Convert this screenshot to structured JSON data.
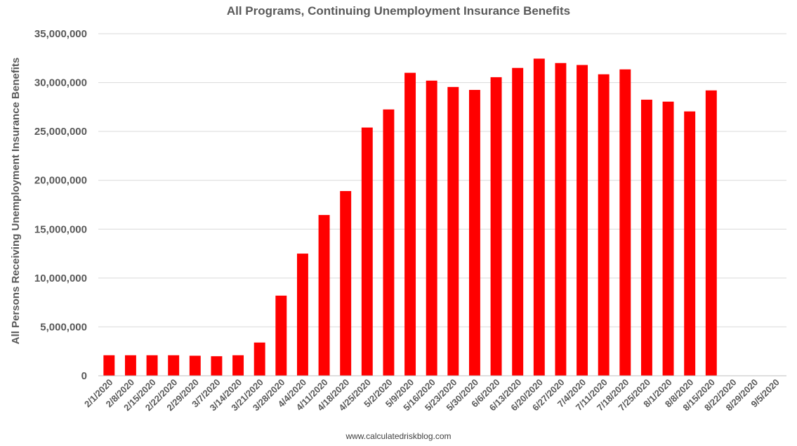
{
  "chart_data": {
    "type": "bar",
    "title": "All Programs, Continuing Unemployment Insurance Benefits",
    "xlabel": "",
    "ylabel": "All Persons Receiving Unemployment Insurance Benefits",
    "ylim": [
      0,
      35000000
    ],
    "yticks": [
      0,
      5000000,
      10000000,
      15000000,
      20000000,
      25000000,
      30000000,
      35000000
    ],
    "ytick_labels": [
      "0",
      "5,000,000",
      "10,000,000",
      "15,000,000",
      "20,000,000",
      "25,000,000",
      "30,000,000",
      "35,000,000"
    ],
    "grid": true,
    "categories": [
      "2/1/2020",
      "2/8/2020",
      "2/15/2020",
      "2/22/2020",
      "2/29/2020",
      "3/7/2020",
      "3/14/2020",
      "3/21/2020",
      "3/28/2020",
      "4/4/2020",
      "4/11/2020",
      "4/18/2020",
      "4/25/2020",
      "5/2/2020",
      "5/9/2020",
      "5/16/2020",
      "5/23/2020",
      "5/30/2020",
      "6/6/2020",
      "6/13/2020",
      "6/20/2020",
      "6/27/2020",
      "7/4/2020",
      "7/11/2020",
      "7/18/2020",
      "7/25/2020",
      "8/1/2020",
      "8/8/2020",
      "8/15/2020",
      "8/22/2020",
      "8/29/2020",
      "9/5/2020"
    ],
    "values": [
      2100000,
      2100000,
      2100000,
      2100000,
      2050000,
      2000000,
      2100000,
      3400000,
      8200000,
      12500000,
      16450000,
      18900000,
      25400000,
      27250000,
      31000000,
      30200000,
      29550000,
      29250000,
      30550000,
      31500000,
      32450000,
      32000000,
      31800000,
      30850000,
      31350000,
      28250000,
      28050000,
      27050000,
      29200000,
      null,
      null,
      null
    ],
    "bar_color": "#ff0000"
  },
  "footer": {
    "credit": "www.calculatedriskblog.com"
  }
}
